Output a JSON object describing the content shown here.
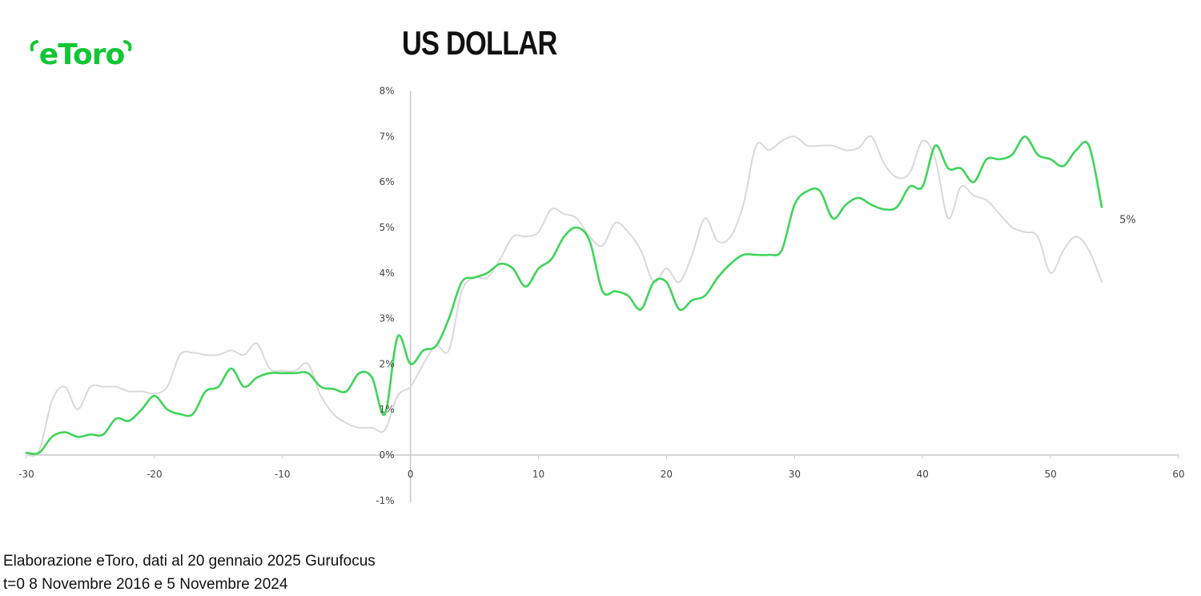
{
  "header": {
    "logo_text": "eToro",
    "title": "US DOLLAR"
  },
  "footer": {
    "source": "Elaborazione eToro, dati al 20 gennaio 2025 Gurufocus",
    "note": "t=0  8 Novembre 2016 e 5 Novembre 2024"
  },
  "colors": {
    "accent": "#13c636",
    "series_green": "#3fd45a",
    "series_grey": "#d9d9d9",
    "axis": "#c8c8c8"
  },
  "chart_data": {
    "type": "line",
    "title": "US DOLLAR",
    "xlabel": "",
    "ylabel": "",
    "xlim": [
      -30,
      60
    ],
    "ylim": [
      -1,
      8
    ],
    "x_ticks": [
      -30,
      -20,
      -10,
      0,
      10,
      20,
      30,
      40,
      50,
      60
    ],
    "y_ticks": [
      -1,
      0,
      1,
      2,
      3,
      4,
      5,
      6,
      7,
      8
    ],
    "x_tick_labels": [
      "-30",
      "-20",
      "-10",
      "0",
      "10",
      "20",
      "30",
      "40",
      "50",
      "60"
    ],
    "y_tick_labels": [
      "-1%",
      "0%",
      "1%",
      "2%",
      "3%",
      "4%",
      "5%",
      "6%",
      "7%",
      "8%"
    ],
    "grid": false,
    "legend": "none",
    "end_label": "5%",
    "series": [
      {
        "color": "#d9d9d9",
        "x": [
          -30,
          -29,
          -28,
          -27,
          -26,
          -25,
          -24,
          -23,
          -22,
          -21,
          -20,
          -19,
          -18,
          -17,
          -16,
          -15,
          -14,
          -13,
          -12,
          -11,
          -10,
          -9,
          -8,
          -7,
          -6,
          -5,
          -4,
          -3,
          -2,
          -1,
          0,
          1,
          2,
          3,
          4,
          5,
          6,
          7,
          8,
          9,
          10,
          11,
          12,
          13,
          14,
          15,
          16,
          17,
          18,
          19,
          20,
          21,
          22,
          23,
          24,
          25,
          26,
          27,
          28,
          29,
          30,
          31,
          32,
          33,
          34,
          35,
          36,
          37,
          38,
          39,
          40,
          41,
          42,
          43,
          44,
          45,
          46,
          47,
          48,
          49,
          50,
          51,
          52,
          53,
          54
        ],
        "y": [
          0.0,
          0.1,
          1.2,
          1.5,
          1.0,
          1.5,
          1.5,
          1.5,
          1.4,
          1.4,
          1.35,
          1.5,
          2.2,
          2.25,
          2.2,
          2.2,
          2.3,
          2.2,
          2.45,
          1.9,
          1.85,
          1.85,
          2.0,
          1.3,
          0.9,
          0.7,
          0.6,
          0.6,
          0.55,
          1.3,
          1.5,
          2.0,
          2.4,
          2.3,
          3.6,
          3.9,
          3.9,
          4.3,
          4.8,
          4.8,
          4.9,
          5.4,
          5.3,
          5.2,
          4.8,
          4.6,
          5.1,
          4.9,
          4.5,
          3.8,
          4.1,
          3.8,
          4.4,
          5.2,
          4.7,
          4.8,
          5.5,
          6.8,
          6.7,
          6.9,
          7.0,
          6.8,
          6.8,
          6.8,
          6.7,
          6.75,
          7.0,
          6.4,
          6.1,
          6.2,
          6.9,
          6.5,
          5.2,
          5.9,
          5.7,
          5.6,
          5.3,
          5.0,
          4.9,
          4.8,
          4.0,
          4.5,
          4.8,
          4.5,
          3.8
        ]
      },
      {
        "color": "#3fd45a",
        "x": [
          -30,
          -29,
          -28,
          -27,
          -26,
          -25,
          -24,
          -23,
          -22,
          -21,
          -20,
          -19,
          -18,
          -17,
          -16,
          -15,
          -14,
          -13,
          -12,
          -11,
          -10,
          -9,
          -8,
          -7,
          -6,
          -5,
          -4,
          -3,
          -2,
          -1,
          0,
          1,
          2,
          3,
          4,
          5,
          6,
          7,
          8,
          9,
          10,
          11,
          12,
          13,
          14,
          15,
          16,
          17,
          18,
          19,
          20,
          21,
          22,
          23,
          24,
          25,
          26,
          27,
          28,
          29,
          30,
          31,
          32,
          33,
          34,
          35,
          36,
          37,
          38,
          39,
          40,
          41,
          42,
          43,
          44,
          45,
          46,
          47,
          48,
          49,
          50,
          51,
          52,
          53,
          54
        ],
        "y": [
          0.05,
          0.05,
          0.4,
          0.5,
          0.4,
          0.45,
          0.45,
          0.8,
          0.75,
          1.0,
          1.3,
          1.0,
          0.9,
          0.9,
          1.4,
          1.5,
          1.9,
          1.5,
          1.7,
          1.8,
          1.8,
          1.8,
          1.8,
          1.5,
          1.45,
          1.4,
          1.8,
          1.7,
          0.9,
          2.6,
          2.0,
          2.3,
          2.4,
          3.0,
          3.8,
          3.9,
          4.0,
          4.2,
          4.1,
          3.7,
          4.1,
          4.3,
          4.8,
          5.0,
          4.7,
          3.6,
          3.6,
          3.5,
          3.2,
          3.8,
          3.8,
          3.2,
          3.4,
          3.5,
          3.9,
          4.2,
          4.4,
          4.4,
          4.4,
          4.5,
          5.5,
          5.8,
          5.8,
          5.2,
          5.5,
          5.65,
          5.5,
          5.4,
          5.45,
          5.9,
          5.9,
          6.8,
          6.3,
          6.3,
          6.0,
          6.5,
          6.5,
          6.6,
          7.0,
          6.6,
          6.5,
          6.35,
          6.7,
          6.8,
          5.45
        ]
      }
    ]
  }
}
